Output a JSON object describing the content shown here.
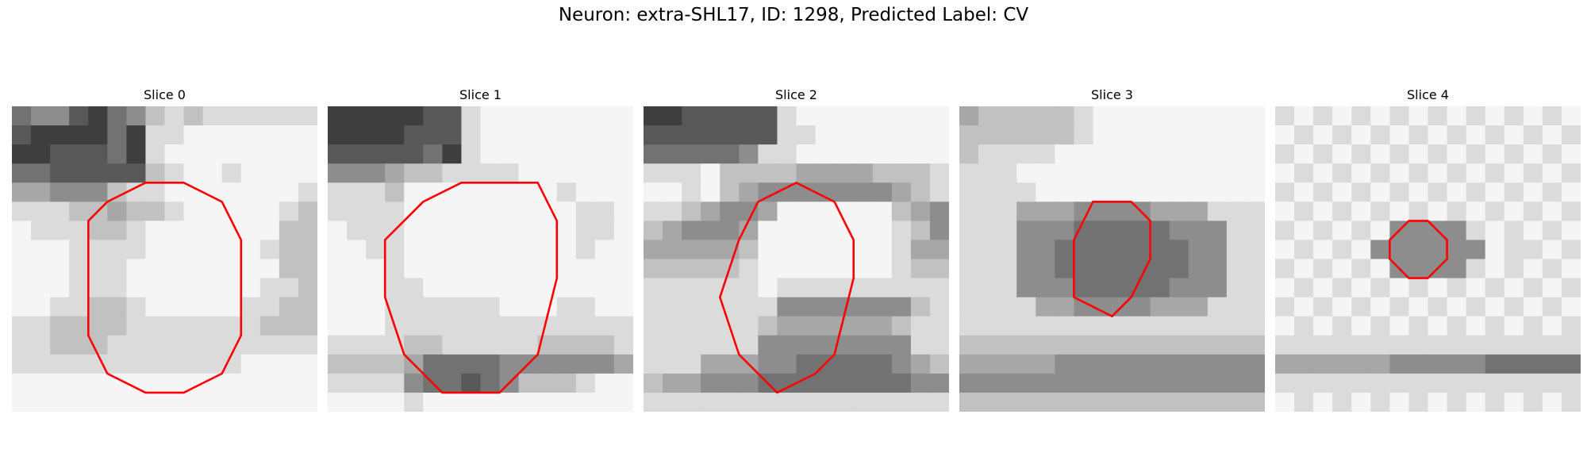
{
  "figure": {
    "title": "Neuron: extra-SHL17, ID: 1298, Predicted Label: CV"
  },
  "colors": {
    "contour": "#ff0000",
    "background": "#ffffff"
  },
  "panels": [
    {
      "title": "Slice 0",
      "grid": [
        "4553245787888888",
        "3222242889999999",
        "2233342899999999",
        "4433333789989999",
        "6655578899999998",
        "8887767789999987",
        "9888778999999977",
        "9998888999999877",
        "9998889999999977",
        "9998889999999887",
        "9988778999998877",
        "8877778888888777",
        "8877788888888888",
        "8888888888889999",
        "9999999999999999",
        "9999999999999999"
      ],
      "contour": [
        [
          7,
          4
        ],
        [
          9,
          4
        ],
        [
          11,
          5
        ],
        [
          12,
          7
        ],
        [
          12,
          12
        ],
        [
          11,
          14
        ],
        [
          9,
          15
        ],
        [
          7,
          15
        ],
        [
          5,
          14
        ],
        [
          4,
          12
        ],
        [
          4,
          6
        ],
        [
          5,
          5
        ]
      ]
    },
    {
      "title": "Slice 1",
      "grid": [
        "2222233899999999",
        "2222333899999999",
        "3333342899999999",
        "5556778888999999",
        "8887999999998999",
        "8888999999999889",
        "9888999999999889",
        "9988999999999899",
        "9998999999999999",
        "9998899999999999",
        "9998888889998899",
        "9998888888888888",
        "8888778888877778",
        "7777644445555556",
        "8888544345777899",
        "9999899999999999"
      ],
      "contour": [
        [
          7,
          4
        ],
        [
          11,
          4
        ],
        [
          12,
          6
        ],
        [
          12,
          9
        ],
        [
          11,
          13
        ],
        [
          9,
          15
        ],
        [
          6,
          15
        ],
        [
          4,
          13
        ],
        [
          3,
          10
        ],
        [
          3,
          7
        ],
        [
          5,
          5
        ]
      ]
    },
    {
      "title": "Slice 2",
      "grid": [
        "2233333899999999",
        "3333333889999999",
        "4444458899999999",
        "8889777766667778",
        "9989765555555678",
        "8876556999999765",
        "7655569999999875",
        "6666679999999866",
        "7777789999999877",
        "8888889888888888",
        "8888888555555578",
        "8888887666666788",
        "8888885555555588",
        "8886665544444567",
        "7665554444444455",
        "8888888888888888"
      ],
      "contour": [
        [
          8,
          4
        ],
        [
          10,
          5
        ],
        [
          11,
          7
        ],
        [
          11,
          9
        ],
        [
          10,
          13
        ],
        [
          9,
          14
        ],
        [
          7,
          15
        ],
        [
          5,
          13
        ],
        [
          4,
          10
        ],
        [
          5,
          7
        ],
        [
          6,
          5
        ]
      ]
    },
    {
      "title": "Slice 3",
      "grid": [
        "6777778999999999",
        "7777778999999999",
        "7888899999999999",
        "8889999999999999",
        "8888999999999999",
        "8886665555666888",
        "8885554444455588",
        "8885544444445588",
        "8885544444445588",
        "8885554444455588",
        "8888665555666888",
        "8888888888888888",
        "7777777777777777",
        "6666655555555555",
        "5555555555555555",
        "7777777777777777"
      ],
      "contour": [
        [
          7,
          5
        ],
        [
          9,
          5
        ],
        [
          10,
          6
        ],
        [
          10,
          8
        ],
        [
          9,
          10
        ],
        [
          8,
          11
        ],
        [
          6,
          10
        ],
        [
          6,
          8
        ],
        [
          6,
          7
        ]
      ]
    },
    {
      "title": "Slice 4",
      "grid": [
        "8989898989898989",
        "9898989898989898",
        "8989898989898989",
        "9898989898989898",
        "8989898989898989",
        "9898989898989898",
        "8989895555898989",
        "9898955555598898",
        "8989895555898989",
        "9898989898989898",
        "8989898989898989",
        "9898989898989898",
        "8888888888888888",
        "6666665555544444",
        "8888888888888888",
        "9898989898989898"
      ],
      "contour": [
        [
          7,
          6
        ],
        [
          8,
          6
        ],
        [
          9,
          7
        ],
        [
          9,
          8
        ],
        [
          8,
          9
        ],
        [
          7,
          9
        ],
        [
          6,
          8
        ],
        [
          6,
          7
        ]
      ]
    }
  ]
}
